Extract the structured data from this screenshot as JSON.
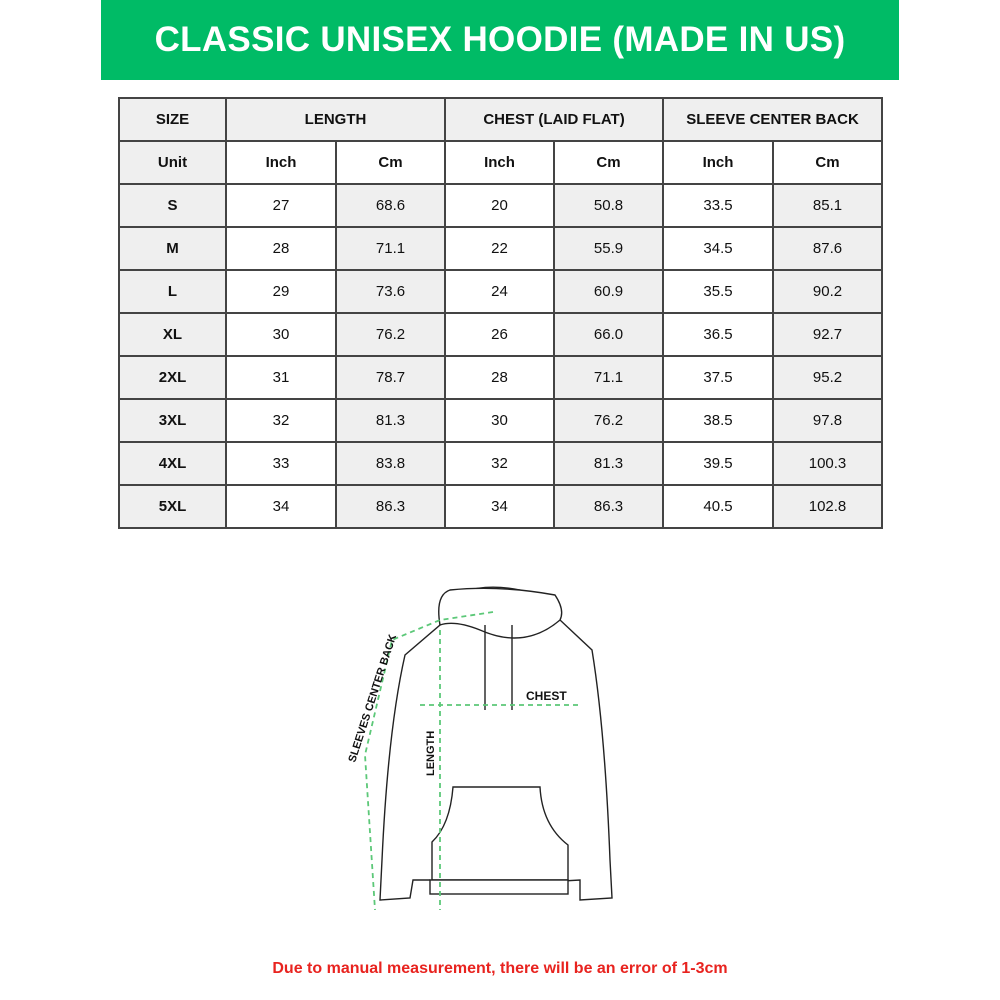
{
  "title": "CLASSIC UNISEX HOODIE (MADE IN US)",
  "colors": {
    "banner": "#00bb66",
    "note": "#e8231f",
    "arrow": "#5cc878"
  },
  "table": {
    "headers": [
      "SIZE",
      "LENGTH",
      "CHEST (LAID FLAT)",
      "SLEEVE CENTER BACK"
    ],
    "units": [
      "Unit",
      "Inch",
      "Cm",
      "Inch",
      "Cm",
      "Inch",
      "Cm"
    ],
    "rows": [
      [
        "S",
        "27",
        "68.6",
        "20",
        "50.8",
        "33.5",
        "85.1"
      ],
      [
        "M",
        "28",
        "71.1",
        "22",
        "55.9",
        "34.5",
        "87.6"
      ],
      [
        "L",
        "29",
        "73.6",
        "24",
        "60.9",
        "35.5",
        "90.2"
      ],
      [
        "XL",
        "30",
        "76.2",
        "26",
        "66.0",
        "36.5",
        "92.7"
      ],
      [
        "2XL",
        "31",
        "78.7",
        "28",
        "71.1",
        "37.5",
        "95.2"
      ],
      [
        "3XL",
        "32",
        "81.3",
        "30",
        "76.2",
        "38.5",
        "97.8"
      ],
      [
        "4XL",
        "33",
        "83.8",
        "32",
        "81.3",
        "39.5",
        "100.3"
      ],
      [
        "5XL",
        "34",
        "86.3",
        "34",
        "86.3",
        "40.5",
        "102.8"
      ]
    ]
  },
  "diagram": {
    "chest_label": "CHEST",
    "length_label": "LENGTH",
    "sleeve_label": "SLEEVES CENTER BACK"
  },
  "note": "Due to manual measurement, there will be an error of 1-3cm"
}
